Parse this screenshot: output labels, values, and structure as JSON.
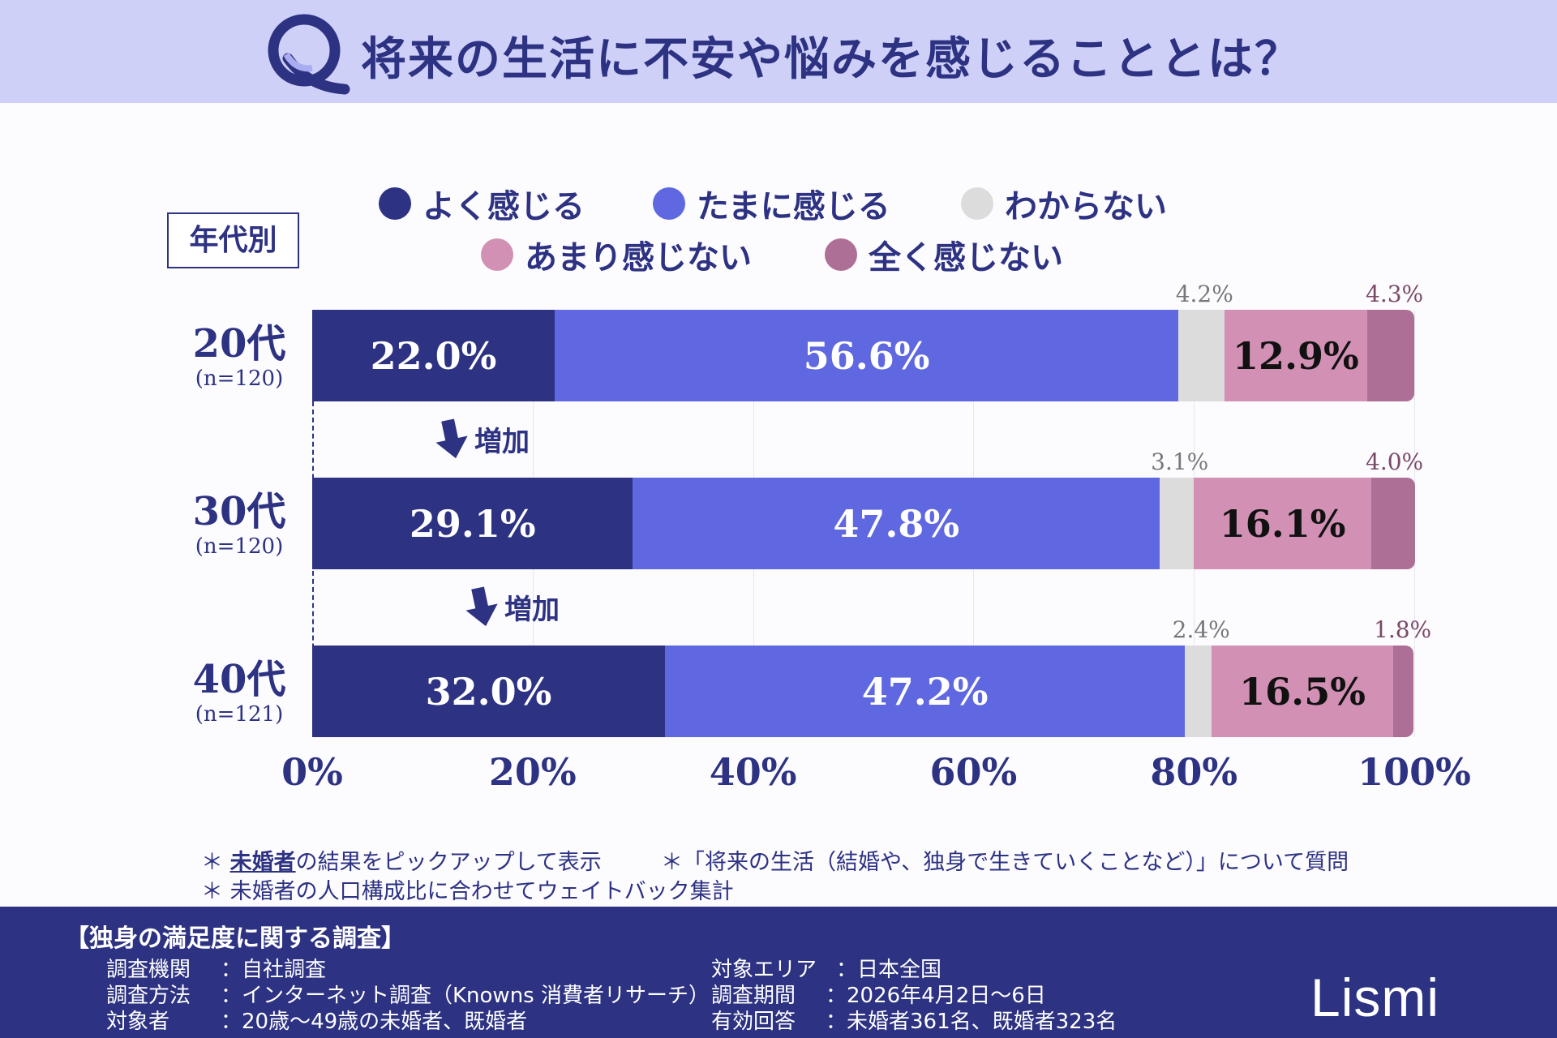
{
  "header": {
    "title": "将来の生活に不安や悩みを感じることとは？"
  },
  "legend": [
    {
      "label": "よく感じる",
      "color": "#2d3282"
    },
    {
      "label": "たまに感じる",
      "color": "#5f68e0"
    },
    {
      "label": "わからない",
      "color": "#dcdcdc"
    },
    {
      "label": "あまり感じない",
      "color": "#d291b4"
    },
    {
      "label": "全く感じない",
      "color": "#ad6f95"
    }
  ],
  "age_label": "年代別",
  "increase_label": "増加",
  "chart_data": {
    "type": "bar",
    "orientation": "horizontal",
    "stacked": true,
    "categories": [
      {
        "label": "20代",
        "n": "(n=120)"
      },
      {
        "label": "30代",
        "n": "(n=120)"
      },
      {
        "label": "40代",
        "n": "(n=121)"
      }
    ],
    "series": [
      {
        "name": "よく感じる",
        "values": [
          22.0,
          29.1,
          32.0
        ],
        "labels": [
          "22.0%",
          "29.1%",
          "32.0%"
        ]
      },
      {
        "name": "たまに感じる",
        "values": [
          56.6,
          47.8,
          47.2
        ],
        "labels": [
          "56.6%",
          "47.8%",
          "47.2%"
        ]
      },
      {
        "name": "わからない",
        "values": [
          4.2,
          3.1,
          2.4
        ],
        "labels": [
          "4.2%",
          "3.1%",
          "2.4%"
        ]
      },
      {
        "name": "あまり感じない",
        "values": [
          12.9,
          16.1,
          16.5
        ],
        "labels": [
          "12.9%",
          "16.1%",
          "16.5%"
        ]
      },
      {
        "name": "全く感じない",
        "values": [
          4.3,
          4.0,
          1.8
        ],
        "labels": [
          "4.3%",
          "4.0%",
          "1.8%"
        ]
      }
    ],
    "xlim": [
      0,
      100
    ],
    "xticks": [
      "0%",
      "20%",
      "40%",
      "60%",
      "80%",
      "100%"
    ],
    "grid": true
  },
  "notes": {
    "n1_em": "未婚者",
    "n1_rest": "の結果をピックアップして表示",
    "n2": "＊「将来の生活（結婚や、独身で生きていくことなど）」について質問",
    "n3": "未婚者の人口構成比に合わせてウェイトバック集計",
    "star": "＊"
  },
  "footer": {
    "title": "【独身の満足度に関する調査】",
    "left": [
      {
        "k": "調査機関",
        "v": "：自社調査"
      },
      {
        "k": "調査方法",
        "v": "：インターネット調査（Knowns 消費者リサーチ）"
      },
      {
        "k": "対象者",
        "v": "：20歳～49歳の未婚者、既婚者"
      }
    ],
    "right": [
      {
        "k": "対象エリア",
        "v": "：日本全国"
      },
      {
        "k": "調査期間",
        "v": "：2026年4月2日～6日"
      },
      {
        "k": "有効回答",
        "v": "：未婚者361名、既婚者323名"
      }
    ],
    "logo": "Lismi"
  }
}
